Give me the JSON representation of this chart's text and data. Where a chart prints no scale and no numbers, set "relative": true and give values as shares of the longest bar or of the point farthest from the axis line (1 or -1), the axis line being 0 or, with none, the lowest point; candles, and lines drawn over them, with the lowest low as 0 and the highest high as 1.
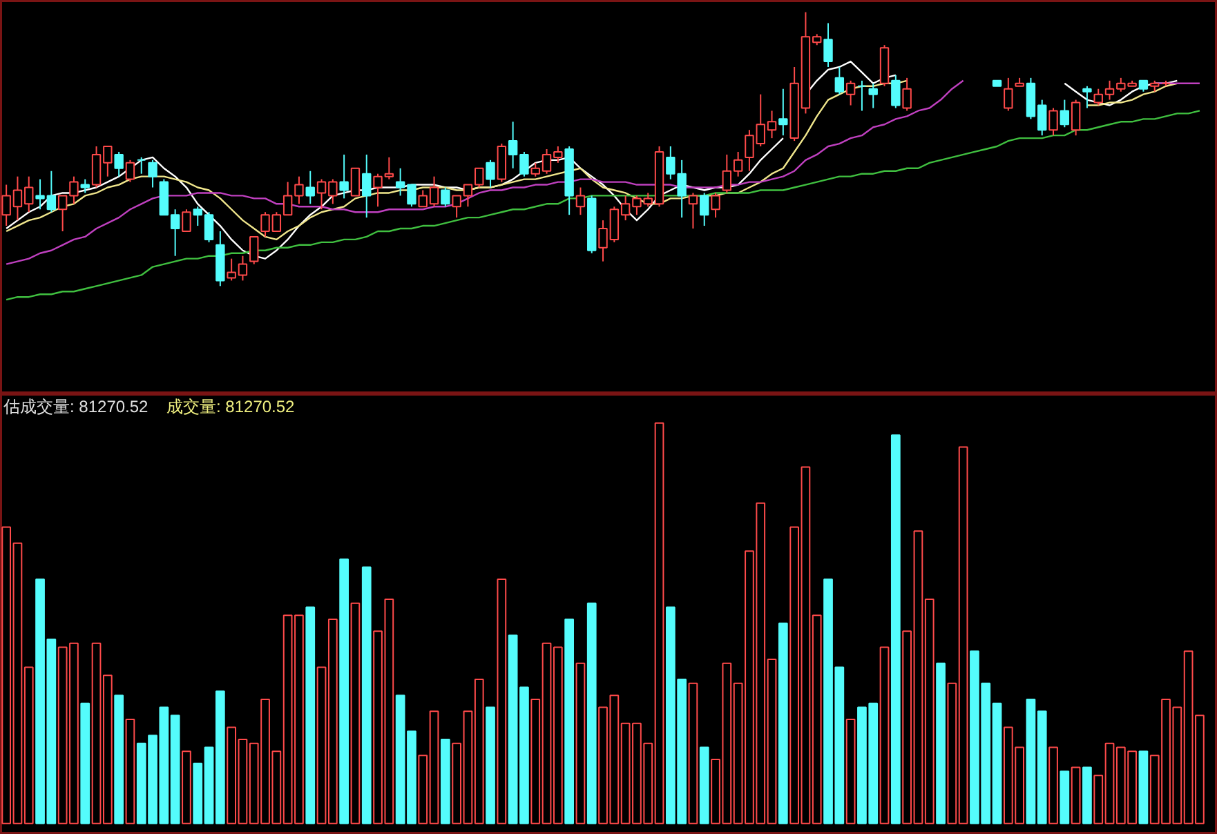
{
  "chart_data": [
    {
      "type": "candlestick",
      "relative": true,
      "marker": "none",
      "categories": [
        null,
        null,
        null,
        null,
        null,
        null,
        null,
        null,
        null,
        null,
        null,
        null,
        null,
        null,
        null,
        null,
        null,
        null,
        null,
        null,
        null,
        null,
        null,
        null,
        null,
        null,
        null,
        null,
        null,
        null,
        null,
        null,
        null,
        null,
        null,
        null,
        null,
        null,
        null,
        null,
        null,
        null,
        null,
        null,
        null,
        null,
        null,
        null,
        null,
        null,
        null,
        null,
        null,
        null,
        null,
        null,
        null,
        null,
        null,
        null,
        null,
        null,
        null,
        null,
        null,
        null,
        null,
        null,
        null,
        null,
        null,
        null,
        null,
        null,
        null,
        null,
        null,
        null,
        null,
        null,
        null,
        null,
        null,
        null,
        null,
        null,
        null,
        null,
        null,
        null,
        null,
        null,
        null,
        null,
        null,
        null,
        null,
        null,
        null,
        null,
        null,
        null,
        null,
        null,
        null,
        null,
        null
      ],
      "colors": [
        "#ff4a4a",
        "#ff4a4a",
        "#ff4a4a",
        "#54fcfc",
        "#54fcfc",
        "#ff4a4a",
        "#ff4a4a",
        "#54fcfc",
        "#ff4a4a",
        "#ff4a4a",
        "#54fcfc",
        "#ff4a4a",
        "#54fcfc",
        "#54fcfc",
        "#54fcfc",
        "#54fcfc",
        "#ff4a4a",
        "#54fcfc",
        "#54fcfc",
        "#54fcfc",
        "#ff4a4a",
        "#ff4a4a",
        "#ff4a4a",
        "#ff4a4a",
        "#ff4a4a",
        "#ff4a4a",
        "#ff4a4a",
        "#54fcfc",
        "#ff4a4a",
        "#ff4a4a",
        "#54fcfc",
        "#ff4a4a",
        "#54fcfc",
        "#ff4a4a",
        "#ff4a4a",
        "#54fcfc",
        "#54fcfc",
        "#ff4a4a",
        "#ff4a4a",
        "#54fcfc",
        "#ff4a4a",
        "#ff4a4a",
        "#ff4a4a",
        "#54fcfc",
        "#ff4a4a",
        "#54fcfc",
        "#54fcfc",
        "#ff4a4a",
        "#ff4a4a",
        "#ff4a4a",
        "#54fcfc",
        "#ff4a4a",
        "#54fcfc",
        "#ff4a4a",
        "#ff4a4a",
        "#ff4a4a",
        "#ff4a4a",
        "#ff4a4a",
        "#ff4a4a",
        "#54fcfc",
        "#54fcfc",
        "#ff4a4a",
        "#54fcfc",
        "#ff4a4a",
        "#ff4a4a",
        "#ff4a4a",
        "#ff4a4a",
        "#ff4a4a",
        "#ff4a4a",
        "#54fcfc",
        "#ff4a4a",
        "#ff4a4a",
        "#ff4a4a",
        "#54fcfc",
        "#54fcfc",
        "#ff4a4a",
        "#54fcfc",
        "#54fcfc",
        "#ff4a4a",
        "#54fcfc",
        "#ff4a4a",
        "#ff4a4a",
        "#ff4a4a",
        "#54fcfc",
        "#ff4a4a",
        "#ff4a4a",
        "#54fcfc",
        "#54fcfc",
        "#54fcfc",
        "#ff4a4a",
        "#ff4a4a",
        "#54fcfc",
        "#54fcfc",
        "#ff4a4a",
        "#54fcfc",
        "#ff4a4a",
        "#54fcfc",
        "#ff4a4a",
        "#ff4a4a",
        "#ff4a4a",
        "#ff4a4a",
        "#54fcfc",
        "#ff4a4a",
        "#ff4a4a",
        "#ff4a4a",
        "#ff4a4a",
        "#ff4a4a"
      ],
      "ohlc": [
        [
          0.26,
          0.37,
          0.22,
          0.33
        ],
        [
          0.29,
          0.4,
          0.24,
          0.35
        ],
        [
          0.3,
          0.4,
          0.27,
          0.36
        ],
        [
          0.33,
          0.39,
          0.28,
          0.32
        ],
        [
          0.33,
          0.42,
          0.27,
          0.28
        ],
        [
          0.28,
          0.33,
          0.2,
          0.33
        ],
        [
          0.33,
          0.4,
          0.3,
          0.38
        ],
        [
          0.37,
          0.39,
          0.34,
          0.36
        ],
        [
          0.37,
          0.51,
          0.36,
          0.48
        ],
        [
          0.45,
          0.51,
          0.4,
          0.51
        ],
        [
          0.48,
          0.49,
          0.4,
          0.43
        ],
        [
          0.39,
          0.46,
          0.38,
          0.45
        ],
        [
          0.46,
          0.47,
          0.41,
          0.46
        ],
        [
          0.45,
          0.46,
          0.36,
          0.4
        ],
        [
          0.38,
          0.39,
          0.26,
          0.26
        ],
        [
          0.26,
          0.28,
          0.11,
          0.21
        ],
        [
          0.2,
          0.28,
          0.2,
          0.27
        ],
        [
          0.28,
          0.29,
          0.22,
          0.26
        ],
        [
          0.26,
          0.27,
          0.16,
          0.17
        ],
        [
          0.15,
          0.2,
          0,
          0.02
        ],
        [
          0.03,
          0.1,
          0.02,
          0.05
        ],
        [
          0.04,
          0.11,
          0.02,
          0.08
        ],
        [
          0.09,
          0.18,
          0.08,
          0.18
        ],
        [
          0.2,
          0.27,
          0.18,
          0.26
        ],
        [
          0.2,
          0.27,
          0.2,
          0.26
        ],
        [
          0.26,
          0.38,
          0.26,
          0.33
        ],
        [
          0.33,
          0.4,
          0.3,
          0.37
        ],
        [
          0.36,
          0.42,
          0.3,
          0.33
        ],
        [
          0.34,
          0.39,
          0.28,
          0.38
        ],
        [
          0.33,
          0.39,
          0.3,
          0.38
        ],
        [
          0.38,
          0.48,
          0.32,
          0.35
        ],
        [
          0.33,
          0.43,
          0.33,
          0.43
        ],
        [
          0.41,
          0.48,
          0.25,
          0.33
        ],
        [
          0.36,
          0.41,
          0.29,
          0.4
        ],
        [
          0.4,
          0.47,
          0.39,
          0.41
        ],
        [
          0.38,
          0.43,
          0.33,
          0.36
        ],
        [
          0.37,
          0.37,
          0.29,
          0.3
        ],
        [
          0.29,
          0.35,
          0.29,
          0.33
        ],
        [
          0.3,
          0.4,
          0.29,
          0.36
        ],
        [
          0.35,
          0.36,
          0.29,
          0.3
        ],
        [
          0.29,
          0.33,
          0.25,
          0.33
        ],
        [
          0.33,
          0.37,
          0.29,
          0.37
        ],
        [
          0.37,
          0.43,
          0.36,
          0.43
        ],
        [
          0.45,
          0.46,
          0.36,
          0.39
        ],
        [
          0.39,
          0.52,
          0.38,
          0.51
        ],
        [
          0.53,
          0.6,
          0.43,
          0.48
        ],
        [
          0.48,
          0.49,
          0.4,
          0.41
        ],
        [
          0.41,
          0.45,
          0.4,
          0.43
        ],
        [
          0.42,
          0.5,
          0.41,
          0.48
        ],
        [
          0.47,
          0.51,
          0.45,
          0.49
        ],
        [
          0.5,
          0.51,
          0.26,
          0.33
        ],
        [
          0.29,
          0.36,
          0.26,
          0.33
        ],
        [
          0.32,
          0.33,
          0.12,
          0.13
        ],
        [
          0.14,
          0.24,
          0.09,
          0.21
        ],
        [
          0.17,
          0.29,
          0.16,
          0.28
        ],
        [
          0.26,
          0.33,
          0.24,
          0.3
        ],
        [
          0.29,
          0.33,
          0.26,
          0.32
        ],
        [
          0.3,
          0.34,
          0.29,
          0.32
        ],
        [
          0.3,
          0.51,
          0.29,
          0.49
        ],
        [
          0.47,
          0.51,
          0.39,
          0.41
        ],
        [
          0.41,
          0.46,
          0.25,
          0.33
        ],
        [
          0.3,
          0.34,
          0.21,
          0.33
        ],
        [
          0.33,
          0.34,
          0.22,
          0.26
        ],
        [
          0.28,
          0.34,
          0.25,
          0.33
        ],
        [
          0.35,
          0.48,
          0.34,
          0.42
        ],
        [
          0.42,
          0.49,
          0.4,
          0.46
        ],
        [
          0.47,
          0.57,
          0.42,
          0.55
        ],
        [
          0.52,
          0.7,
          0.51,
          0.59
        ],
        [
          0.57,
          0.64,
          0.54,
          0.6
        ],
        [
          0.61,
          0.72,
          0.55,
          0.59
        ],
        [
          0.54,
          0.8,
          0.53,
          0.74
        ],
        [
          0.65,
          1,
          0.63,
          0.91
        ],
        [
          0.89,
          0.92,
          0.88,
          0.91
        ],
        [
          0.9,
          0.96,
          0.8,
          0.82
        ],
        [
          0.76,
          0.8,
          0.7,
          0.71
        ],
        [
          0.7,
          0.75,
          0.66,
          0.74
        ],
        [
          0.73,
          0.75,
          0.64,
          0.73
        ],
        [
          0.72,
          0.74,
          0.65,
          0.7
        ],
        [
          0.74,
          0.88,
          0.73,
          0.87
        ],
        [
          0.75,
          0.77,
          0.65,
          0.66
        ],
        [
          0.65,
          0.76,
          0.64,
          0.72
        ],
        null,
        null,
        null,
        null,
        null,
        null,
        null,
        [
          0.75,
          0.75,
          0.73,
          0.73
        ],
        [
          0.65,
          0.76,
          0.64,
          0.72
        ],
        [
          0.73,
          0.76,
          0.73,
          0.74
        ],
        [
          0.74,
          0.76,
          0.61,
          0.62
        ],
        [
          0.66,
          0.68,
          0.55,
          0.57
        ],
        [
          0.57,
          0.65,
          0.55,
          0.64
        ],
        [
          0.64,
          0.68,
          0.58,
          0.59
        ],
        [
          0.57,
          0.68,
          0.55,
          0.67
        ],
        [
          0.72,
          0.73,
          0.65,
          0.71
        ],
        [
          0.67,
          0.72,
          0.66,
          0.7
        ],
        [
          0.7,
          0.75,
          0.68,
          0.72
        ],
        [
          0.72,
          0.76,
          0.71,
          0.74
        ],
        [
          0.73,
          0.75,
          0.73,
          0.74
        ],
        [
          0.75,
          0.75,
          0.71,
          0.72
        ],
        [
          0.73,
          0.75,
          0.71,
          0.74
        ],
        [
          0.74,
          0.75,
          0.73,
          0.74
        ],
        null,
        null,
        null
      ],
      "series": [
        {
          "type": "line",
          "color": "#ffffff",
          "values": [
            0.21,
            0.24,
            0.27,
            0.29,
            0.33,
            0.34,
            0.34,
            0.35,
            0.36,
            0.38,
            0.4,
            0.43,
            0.46,
            0.47,
            0.43,
            0.4,
            0.36,
            0.3,
            0.26,
            0.22,
            0.17,
            0.13,
            0.11,
            0.1,
            0.13,
            0.17,
            0.22,
            0.26,
            0.29,
            0.33,
            0.34,
            0.35,
            0.35,
            0.36,
            0.36,
            0.36,
            0.37,
            0.37,
            0.37,
            0.36,
            0.36,
            0.35,
            0.36,
            0.36,
            0.37,
            0.39,
            0.42,
            0.45,
            0.46,
            0.46,
            0.47,
            0.43,
            0.4,
            0.37,
            0.33,
            0.28,
            0.24,
            0.28,
            0.33,
            0.35,
            0.37,
            0.36,
            0.35,
            0.36,
            0.36,
            0.37,
            0.41,
            0.46,
            0.5,
            0.54,
            null,
            0.7,
            0.75,
            0.79,
            0.8,
            0.82,
            0.78,
            0.74,
            0.76,
            0.77,
            null,
            null,
            null,
            null,
            null,
            null,
            null,
            null,
            null,
            null,
            null,
            null,
            null,
            null,
            0.74,
            0.71,
            0.68,
            0.67,
            0.66,
            0.68,
            0.71,
            0.73,
            0.74,
            0.74,
            0.75,
            null,
            null
          ]
        },
        {
          "type": "line",
          "color": "#f0e68c",
          "values": [
            0.2,
            0.22,
            0.24,
            0.25,
            0.27,
            0.29,
            0.3,
            0.33,
            0.34,
            0.36,
            0.37,
            0.39,
            0.4,
            0.4,
            0.4,
            0.39,
            0.38,
            0.36,
            0.35,
            0.32,
            0.28,
            0.24,
            0.21,
            0.18,
            0.17,
            0.2,
            0.22,
            0.25,
            0.27,
            0.28,
            0.29,
            0.32,
            0.33,
            0.34,
            0.34,
            0.35,
            0.35,
            0.36,
            0.36,
            0.36,
            0.35,
            0.35,
            0.36,
            0.36,
            0.37,
            0.38,
            0.39,
            0.39,
            0.4,
            0.41,
            0.42,
            0.43,
            0.39,
            0.36,
            0.35,
            0.34,
            0.32,
            0.3,
            0.3,
            0.32,
            0.32,
            0.33,
            0.33,
            0.33,
            0.34,
            0.34,
            0.36,
            0.38,
            0.41,
            0.43,
            0.49,
            0.55,
            0.62,
            0.68,
            0.7,
            0.72,
            0.73,
            0.73,
            0.74,
            0.74,
            0.75,
            null,
            null,
            null,
            null,
            null,
            null,
            null,
            null,
            null,
            null,
            null,
            null,
            null,
            null,
            null,
            0.66,
            0.66,
            0.67,
            0.67,
            0.68,
            0.7,
            0.71,
            0.73,
            0.74,
            null,
            null
          ]
        },
        {
          "type": "line",
          "color": "#c040c0",
          "values": [
            0.08,
            0.09,
            0.1,
            0.12,
            0.13,
            0.15,
            0.17,
            0.18,
            0.21,
            0.23,
            0.25,
            0.28,
            0.3,
            0.32,
            0.33,
            0.33,
            0.33,
            0.34,
            0.34,
            0.34,
            0.33,
            0.33,
            0.32,
            0.32,
            0.3,
            0.3,
            0.29,
            0.29,
            0.29,
            0.28,
            0.28,
            0.27,
            0.27,
            0.27,
            0.28,
            0.28,
            0.28,
            0.28,
            0.29,
            0.29,
            0.3,
            0.32,
            0.34,
            0.35,
            0.35,
            0.36,
            0.36,
            0.37,
            0.37,
            0.38,
            0.38,
            0.39,
            0.39,
            0.38,
            0.38,
            0.38,
            0.37,
            0.37,
            0.37,
            0.37,
            0.36,
            0.36,
            0.36,
            0.36,
            0.37,
            0.37,
            0.38,
            0.38,
            0.39,
            0.4,
            0.42,
            0.46,
            0.48,
            0.51,
            0.52,
            0.54,
            0.55,
            0.58,
            0.59,
            0.61,
            0.62,
            0.64,
            0.65,
            0.68,
            0.72,
            0.75,
            null,
            null,
            null,
            null,
            null,
            null,
            null,
            null,
            null,
            null,
            null,
            null,
            null,
            null,
            null,
            null,
            0.74,
            0.74,
            0.74,
            0.74,
            0.74
          ]
        },
        {
          "type": "line",
          "color": "#40c040",
          "values": [
            -0.05,
            -0.04,
            -0.04,
            -0.03,
            -0.03,
            -0.02,
            -0.02,
            -0.01,
            0,
            0.01,
            0.02,
            0.03,
            0.04,
            0.07,
            0.08,
            0.09,
            0.1,
            0.1,
            0.11,
            0.11,
            0.12,
            0.12,
            0.13,
            0.13,
            0.14,
            0.14,
            0.15,
            0.15,
            0.16,
            0.16,
            0.17,
            0.17,
            0.18,
            0.2,
            0.2,
            0.21,
            0.21,
            0.22,
            0.22,
            0.23,
            0.24,
            0.25,
            0.25,
            0.26,
            0.27,
            0.28,
            0.28,
            0.29,
            0.3,
            0.3,
            0.32,
            0.32,
            0.33,
            0.33,
            0.33,
            0.33,
            0.33,
            0.33,
            0.33,
            0.33,
            0.33,
            0.33,
            0.33,
            0.34,
            0.34,
            0.34,
            0.34,
            0.35,
            0.35,
            0.35,
            0.36,
            0.37,
            0.38,
            0.39,
            0.4,
            0.4,
            0.41,
            0.41,
            0.42,
            0.42,
            0.43,
            0.43,
            0.45,
            0.46,
            0.47,
            0.48,
            0.49,
            0.5,
            0.51,
            0.53,
            0.54,
            0.54,
            0.54,
            0.55,
            0.55,
            0.57,
            0.57,
            0.58,
            0.59,
            0.6,
            0.6,
            0.61,
            0.61,
            0.62,
            0.63,
            0.63,
            0.64
          ]
        }
      ]
    },
    {
      "type": "bar",
      "relative": true,
      "categories": [
        null,
        null,
        null,
        null,
        null,
        null,
        null,
        null,
        null,
        null,
        null,
        null,
        null,
        null,
        null,
        null,
        null,
        null,
        null,
        null,
        null,
        null,
        null,
        null,
        null,
        null,
        null,
        null,
        null,
        null,
        null,
        null,
        null,
        null,
        null,
        null,
        null,
        null,
        null,
        null,
        null,
        null,
        null,
        null,
        null,
        null,
        null,
        null,
        null,
        null,
        null,
        null,
        null,
        null,
        null,
        null,
        null,
        null,
        null,
        null,
        null,
        null,
        null,
        null,
        null,
        null,
        null,
        null,
        null,
        null,
        null,
        null,
        null,
        null,
        null,
        null,
        null,
        null,
        null,
        null,
        null,
        null,
        null,
        null,
        null,
        null,
        null,
        null,
        null,
        null,
        null,
        null,
        null,
        null,
        null,
        null,
        null,
        null,
        null,
        null,
        null,
        null,
        null,
        null,
        null,
        null,
        null
      ],
      "values": [
        0.74,
        0.7,
        0.39,
        0.61,
        0.46,
        0.44,
        0.45,
        0.3,
        0.45,
        0.37,
        0.32,
        0.26,
        0.2,
        0.22,
        0.29,
        0.27,
        0.18,
        0.15,
        0.19,
        0.33,
        0.24,
        0.21,
        0.2,
        0.31,
        0.18,
        0.52,
        0.52,
        0.54,
        0.39,
        0.51,
        0.66,
        0.55,
        0.64,
        0.48,
        0.56,
        0.32,
        0.23,
        0.17,
        0.28,
        0.21,
        0.2,
        0.28,
        0.36,
        0.29,
        0.61,
        0.47,
        0.34,
        0.31,
        0.45,
        0.44,
        0.51,
        0.4,
        0.55,
        0.29,
        0.32,
        0.25,
        0.25,
        0.2,
        1,
        0.54,
        0.36,
        0.35,
        0.19,
        0.16,
        0.4,
        0.35,
        0.68,
        0.8,
        0.41,
        0.5,
        0.74,
        0.89,
        0.52,
        0.61,
        0.39,
        0.26,
        0.29,
        0.3,
        0.44,
        0.97,
        0.48,
        0.73,
        0.56,
        0.4,
        0.35,
        0.94,
        0.43,
        0.35,
        0.3,
        0.24,
        0.19,
        0.31,
        0.28,
        0.19,
        0.13,
        0.14,
        0.14,
        0.12,
        0.2,
        0.19,
        0.18,
        0.18,
        0.17,
        0.31,
        0.29,
        0.43,
        0.27
      ],
      "colors": [
        "#ff4a4a",
        "#ff4a4a",
        "#ff4a4a",
        "#54fcfc",
        "#54fcfc",
        "#ff4a4a",
        "#ff4a4a",
        "#54fcfc",
        "#ff4a4a",
        "#ff4a4a",
        "#54fcfc",
        "#ff4a4a",
        "#54fcfc",
        "#54fcfc",
        "#54fcfc",
        "#54fcfc",
        "#ff4a4a",
        "#54fcfc",
        "#54fcfc",
        "#54fcfc",
        "#ff4a4a",
        "#ff4a4a",
        "#ff4a4a",
        "#ff4a4a",
        "#ff4a4a",
        "#ff4a4a",
        "#ff4a4a",
        "#54fcfc",
        "#ff4a4a",
        "#ff4a4a",
        "#54fcfc",
        "#ff4a4a",
        "#54fcfc",
        "#ff4a4a",
        "#ff4a4a",
        "#54fcfc",
        "#54fcfc",
        "#ff4a4a",
        "#ff4a4a",
        "#54fcfc",
        "#ff4a4a",
        "#ff4a4a",
        "#ff4a4a",
        "#54fcfc",
        "#ff4a4a",
        "#54fcfc",
        "#54fcfc",
        "#ff4a4a",
        "#ff4a4a",
        "#ff4a4a",
        "#54fcfc",
        "#ff4a4a",
        "#54fcfc",
        "#ff4a4a",
        "#ff4a4a",
        "#ff4a4a",
        "#ff4a4a",
        "#ff4a4a",
        "#ff4a4a",
        "#54fcfc",
        "#54fcfc",
        "#ff4a4a",
        "#54fcfc",
        "#ff4a4a",
        "#ff4a4a",
        "#ff4a4a",
        "#ff4a4a",
        "#ff4a4a",
        "#ff4a4a",
        "#54fcfc",
        "#ff4a4a",
        "#ff4a4a",
        "#ff4a4a",
        "#54fcfc",
        "#54fcfc",
        "#ff4a4a",
        "#54fcfc",
        "#54fcfc",
        "#ff4a4a",
        "#54fcfc",
        "#ff4a4a",
        "#ff4a4a",
        "#ff4a4a",
        "#54fcfc",
        "#ff4a4a",
        "#ff4a4a",
        "#54fcfc",
        "#54fcfc",
        "#54fcfc",
        "#ff4a4a",
        "#ff4a4a",
        "#54fcfc",
        "#54fcfc",
        "#ff4a4a",
        "#54fcfc",
        "#ff4a4a",
        "#54fcfc",
        "#ff4a4a",
        "#ff4a4a",
        "#ff4a4a",
        "#ff4a4a",
        "#54fcfc",
        "#ff4a4a",
        "#ff4a4a",
        "#ff4a4a",
        "#ff4a4a",
        "#ff4a4a"
      ],
      "annotations": [
        "估成交量: 81270.52",
        "成交量: 81270.52"
      ]
    }
  ]
}
